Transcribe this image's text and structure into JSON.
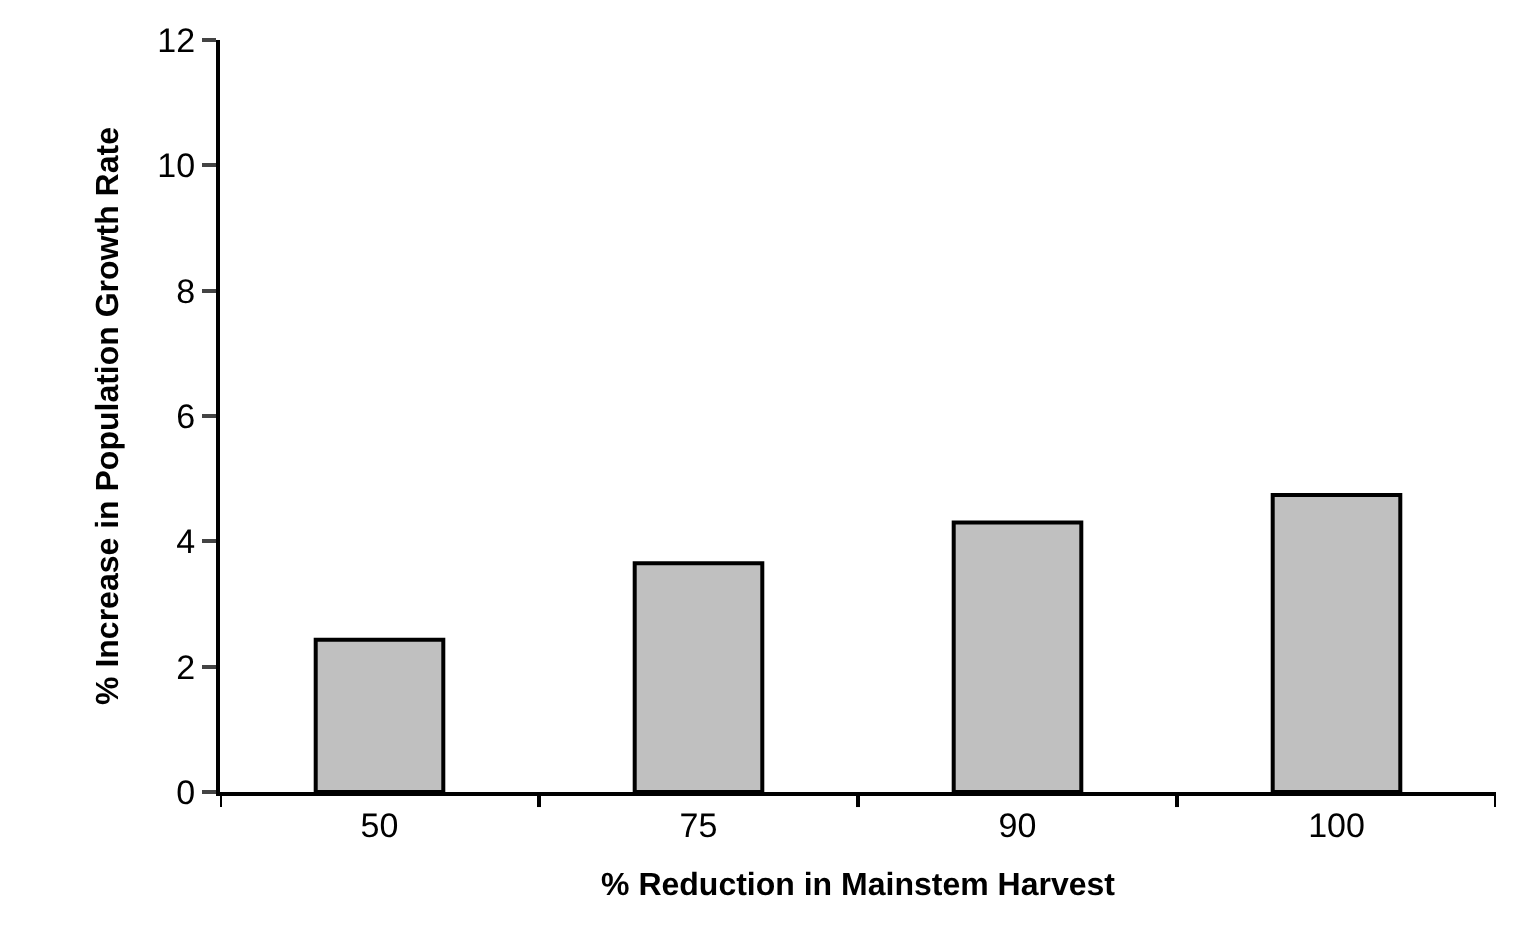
{
  "chart_data": {
    "type": "bar",
    "xlabel": "% Reduction in Mainstem Harvest",
    "ylabel": "% Increase in Population Growth Rate",
    "categories": [
      "50",
      "75",
      "90",
      "100"
    ],
    "values": [
      2.43,
      3.65,
      4.3,
      4.74
    ],
    "color": "#c0c0c0",
    "ylim": [
      0,
      12
    ],
    "yticks": [
      0,
      2,
      4,
      6,
      8,
      10,
      12
    ]
  }
}
